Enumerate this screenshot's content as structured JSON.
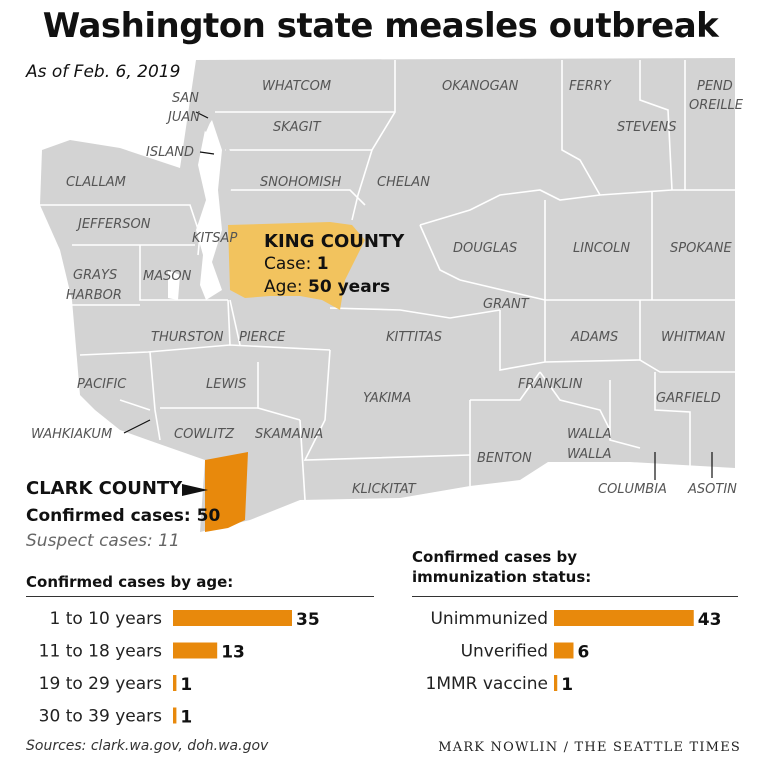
{
  "title": "Washington state measles outbreak",
  "as_of": "As of Feb. 6, 2019",
  "colors": {
    "land": "#d3d3d3",
    "border": "#ffffff",
    "king": "#f2c35e",
    "clark": "#e8890c",
    "bar": "#e8890c"
  },
  "map": {
    "counties": {
      "whatcom": "WHATCOM",
      "okanogan": "OKANOGAN",
      "ferry": "FERRY",
      "pend_oreille_1": "PEND",
      "pend_oreille_2": "OREILLE",
      "san_juan_1": "SAN",
      "san_juan_2": "JUAN",
      "skagit": "SKAGIT",
      "stevens": "STEVENS",
      "island": "ISLAND",
      "clallam": "CLALLAM",
      "snohomish": "SNOHOMISH",
      "chelan": "CHELAN",
      "jefferson": "JEFFERSON",
      "kitsap": "KITSAP",
      "douglas": "DOUGLAS",
      "lincoln": "LINCOLN",
      "spokane": "SPOKANE",
      "grays_harbor_1": "GRAYS",
      "grays_harbor_2": "HARBOR",
      "mason": "MASON",
      "grant": "GRANT",
      "thurston": "THURSTON",
      "pierce": "PIERCE",
      "kittitas": "KITTITAS",
      "adams": "ADAMS",
      "whitman": "WHITMAN",
      "pacific": "PACIFIC",
      "lewis": "LEWIS",
      "franklin": "FRANKLIN",
      "garfield": "GARFIELD",
      "yakima": "YAKIMA",
      "wahkiakum": "WAHKIAKUM",
      "cowlitz": "COWLITZ",
      "skamania": "SKAMANIA",
      "walla_walla_1": "WALLA",
      "walla_walla_2": "WALLA",
      "benton": "BENTON",
      "klickitat": "KLICKITAT",
      "columbia": "COLUMBIA",
      "asotin": "ASOTIN"
    },
    "king": {
      "name": "KING COUNTY",
      "case_label": "Case:",
      "case_value": "1",
      "age_label": "Age:",
      "age_value": "50 years"
    },
    "clark": {
      "name": "CLARK COUNTY",
      "confirmed_label": "Confirmed cases:",
      "confirmed_value": "50",
      "suspect": "Suspect cases: 11"
    }
  },
  "chart_data": [
    {
      "type": "bar",
      "orientation": "horizontal",
      "title": "Confirmed cases by age:",
      "categories": [
        "1 to 10 years",
        "11 to 18 years",
        "19 to 29 years",
        "30 to 39 years"
      ],
      "values": [
        35,
        13,
        1,
        1
      ]
    },
    {
      "type": "bar",
      "orientation": "horizontal",
      "title": "Confirmed cases by immunization status:",
      "title_lines": [
        "Confirmed cases by",
        "immunization status:"
      ],
      "categories": [
        "Unimmunized",
        "Unverified",
        "1MMR vaccine"
      ],
      "values": [
        43,
        6,
        1
      ]
    }
  ],
  "sources": "Sources: clark.wa.gov, doh.wa.gov",
  "credit": "MARK NOWLIN / THE SEATTLE TIMES"
}
